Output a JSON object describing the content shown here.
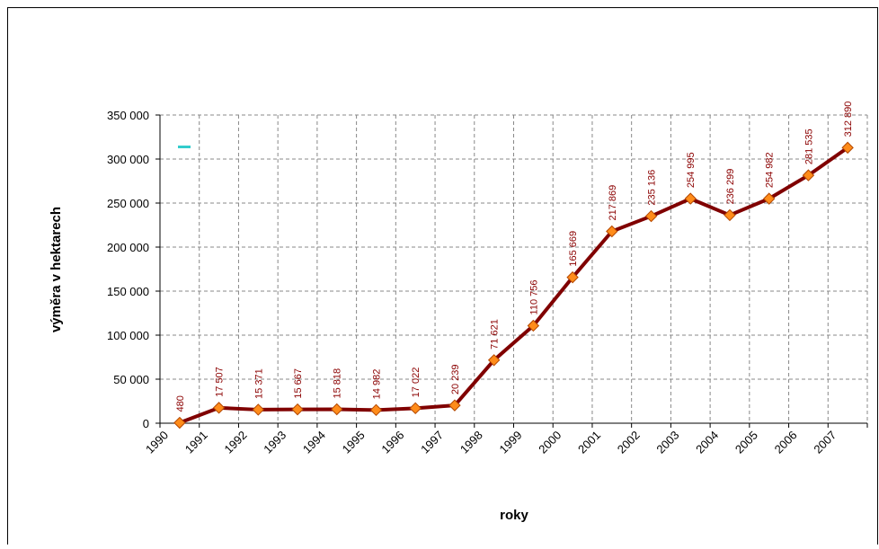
{
  "chart_data": {
    "type": "line",
    "categories": [
      "1990",
      "1991",
      "1992",
      "1993",
      "1994",
      "1995",
      "1996",
      "1997",
      "1998",
      "1999",
      "2000",
      "2001",
      "2002",
      "2003",
      "2004",
      "2005",
      "2006",
      "2007"
    ],
    "series": [
      {
        "color": "#800000",
        "values": [
          480,
          17507,
          15371,
          15667,
          15818,
          14982,
          17022,
          20239,
          71621,
          110756,
          165669,
          217869,
          235136,
          254995,
          236299,
          254982,
          281535,
          312890
        ],
        "value_labels": [
          "480",
          "17 507",
          "15 371",
          "15 667",
          "15 818",
          "14 982",
          "17 022",
          "20 239",
          "71 621",
          "110 756",
          "165 669",
          "217 869",
          "235 136",
          "254 995",
          "236 299",
          "254 982",
          "281 535",
          "312 890"
        ]
      }
    ],
    "ylim": [
      0,
      350000
    ],
    "yticks": [
      0,
      {
        "value": 50000,
        "label": "50 000"
      },
      {
        "value": 100000,
        "label": "100 000"
      },
      {
        "value": 150000,
        "label": "150 000"
      },
      {
        "value": 200000,
        "label": "200 000"
      },
      {
        "value": 250000,
        "label": "250 000"
      },
      {
        "value": 300000,
        "label": "300 000"
      },
      {
        "value": 350000,
        "label": "350 000"
      }
    ],
    "y_label": "výměra v hektarech",
    "x_label": "roky",
    "grid": true
  }
}
